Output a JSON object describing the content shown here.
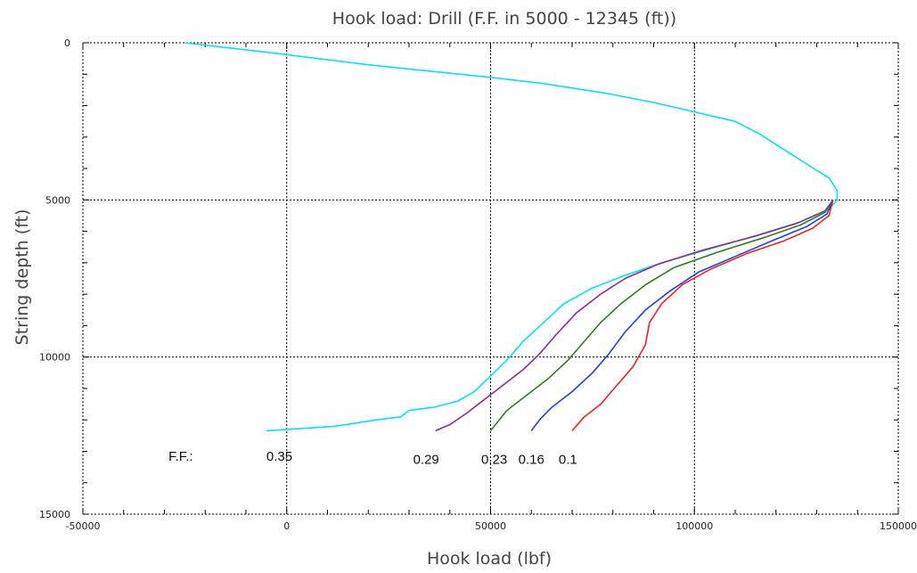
{
  "chart_data": {
    "type": "line",
    "title": "Hook load: Drill (F.F. in 5000 - 12345 (ft))",
    "xlabel": "Hook load (lbf)",
    "ylabel": "String depth (ft)",
    "xlim": [
      -50000,
      150000
    ],
    "ylim": [
      0,
      15000
    ],
    "y_inverted": true,
    "grid": true,
    "x_ticks": [
      {
        "value": -50000,
        "label": "-50000"
      },
      {
        "value": 0,
        "label": "0"
      },
      {
        "value": 50000,
        "label": "50000"
      },
      {
        "value": 100000,
        "label": "100000"
      },
      {
        "value": 150000,
        "label": "150000"
      }
    ],
    "y_ticks": [
      {
        "value": 0,
        "label": "0"
      },
      {
        "value": 5000,
        "label": "5000"
      },
      {
        "value": 10000,
        "label": "10000"
      },
      {
        "value": 15000,
        "label": "15000"
      }
    ],
    "series": [
      {
        "label": "0.35",
        "color": "#00e5ee",
        "points": [
          [
            -25000,
            0
          ],
          [
            -5000,
            300
          ],
          [
            20000,
            700
          ],
          [
            50000,
            1100
          ],
          [
            63000,
            1300
          ],
          [
            78000,
            1600
          ],
          [
            90000,
            1900
          ],
          [
            100000,
            2200
          ],
          [
            110000,
            2500
          ],
          [
            116000,
            2900
          ],
          [
            122000,
            3400
          ],
          [
            128000,
            3900
          ],
          [
            133000,
            4300
          ],
          [
            135000,
            4700
          ],
          [
            135000,
            5000
          ],
          [
            133000,
            5300
          ],
          [
            126000,
            5700
          ],
          [
            116000,
            6100
          ],
          [
            104000,
            6550
          ],
          [
            92000,
            7000
          ],
          [
            83000,
            7400
          ],
          [
            75000,
            7800
          ],
          [
            68000,
            8300
          ],
          [
            63000,
            8900
          ],
          [
            58000,
            9500
          ],
          [
            54000,
            10100
          ],
          [
            50000,
            10600
          ],
          [
            46000,
            11100
          ],
          [
            42000,
            11400
          ],
          [
            36000,
            11600
          ],
          [
            30000,
            11700
          ],
          [
            28000,
            11900
          ],
          [
            22000,
            12000
          ],
          [
            12000,
            12200
          ],
          [
            -5000,
            12345
          ]
        ]
      },
      {
        "label": "0.29",
        "color": "#8e2b8e",
        "points": [
          [
            134000,
            5000
          ],
          [
            132000,
            5350
          ],
          [
            125000,
            5750
          ],
          [
            115000,
            6150
          ],
          [
            102000,
            6600
          ],
          [
            91000,
            7050
          ],
          [
            83000,
            7500
          ],
          [
            77000,
            8000
          ],
          [
            71000,
            8600
          ],
          [
            66000,
            9300
          ],
          [
            62000,
            9900
          ],
          [
            58000,
            10400
          ],
          [
            54000,
            10800
          ],
          [
            49000,
            11300
          ],
          [
            44000,
            11800
          ],
          [
            40000,
            12150
          ],
          [
            36500,
            12345
          ]
        ]
      },
      {
        "label": "0.23",
        "color": "#2e7d1e",
        "points": [
          [
            134000,
            5000
          ],
          [
            132000,
            5400
          ],
          [
            126000,
            5800
          ],
          [
            117000,
            6200
          ],
          [
            106000,
            6650
          ],
          [
            95000,
            7150
          ],
          [
            88000,
            7700
          ],
          [
            82000,
            8300
          ],
          [
            77000,
            8900
          ],
          [
            73000,
            9500
          ],
          [
            69000,
            10100
          ],
          [
            64000,
            10700
          ],
          [
            59000,
            11200
          ],
          [
            54000,
            11700
          ],
          [
            50000,
            12345
          ]
        ]
      },
      {
        "label": "0.16",
        "color": "#1f3fe8",
        "points": [
          [
            134000,
            5000
          ],
          [
            132500,
            5450
          ],
          [
            127500,
            5850
          ],
          [
            119000,
            6300
          ],
          [
            110000,
            6800
          ],
          [
            101000,
            7300
          ],
          [
            94000,
            7900
          ],
          [
            88000,
            8500
          ],
          [
            83000,
            9200
          ],
          [
            79000,
            9900
          ],
          [
            75000,
            10500
          ],
          [
            70000,
            11100
          ],
          [
            65000,
            11600
          ],
          [
            62000,
            12000
          ],
          [
            60000,
            12345
          ]
        ]
      },
      {
        "label": "0.1",
        "color": "#ee2222",
        "points": [
          [
            134000,
            5000
          ],
          [
            133000,
            5500
          ],
          [
            129000,
            5900
          ],
          [
            122000,
            6300
          ],
          [
            113000,
            6700
          ],
          [
            104000,
            7200
          ],
          [
            97000,
            7700
          ],
          [
            92000,
            8300
          ],
          [
            89000,
            8900
          ],
          [
            88000,
            9600
          ],
          [
            85000,
            10300
          ],
          [
            81000,
            10900
          ],
          [
            77000,
            11500
          ],
          [
            73000,
            11900
          ],
          [
            70000,
            12345
          ]
        ]
      }
    ],
    "ff_prefix": "F.F.:",
    "annotations": [
      {
        "id": "ann-035",
        "text": "0.35",
        "x": -5000,
        "y": 13300
      },
      {
        "id": "ann-029",
        "text": "0.29",
        "x": 31000,
        "y": 13400
      },
      {
        "id": "ann-023",
        "text": "0.23",
        "x": 47700,
        "y": 13400
      },
      {
        "id": "ann-016",
        "text": "0.16",
        "x": 56800,
        "y": 13400
      },
      {
        "id": "ann-01",
        "text": "0.1",
        "x": 66700,
        "y": 13400
      }
    ]
  }
}
